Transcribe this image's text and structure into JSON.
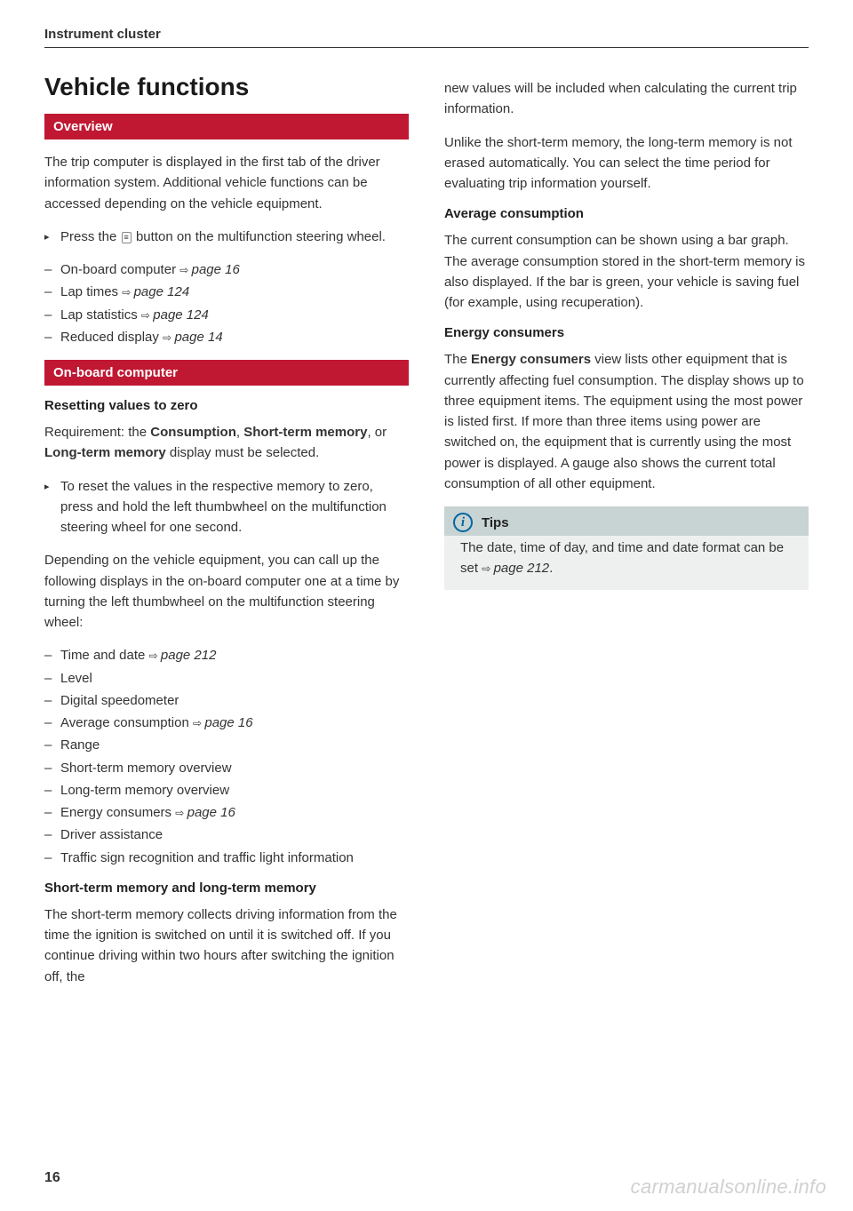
{
  "header": "Instrument cluster",
  "pageNumber": "16",
  "watermark": "carmanualsonline.info",
  "left": {
    "title": "Vehicle functions",
    "overviewBar": "Overview",
    "p1": "The trip computer is displayed in the first tab of the driver information system. Additional vehicle functions can be accessed depending on the vehicle equipment.",
    "press_pre": "Press the ",
    "press_post": " button on the multifunction steering wheel.",
    "list1": [
      {
        "pre": "On-board computer ",
        "ref": "page 16"
      },
      {
        "pre": "Lap times ",
        "ref": "page 124"
      },
      {
        "pre": "Lap statistics ",
        "ref": "page 124"
      },
      {
        "pre": "Reduced display ",
        "ref": "page 14"
      }
    ],
    "obcBar": "On-board computer",
    "sub1": "Resetting values to zero",
    "req_pre": "Requirement: the ",
    "req_b1": "Consumption",
    "req_mid1": ", ",
    "req_b2": "Short-term memory",
    "req_mid2": ", or ",
    "req_b3": "Long-term memory",
    "req_post": " display must be selected.",
    "reset": "To reset the values in the respective memory to zero, press and hold the left thumbwheel on the multifunction steering wheel for one second.",
    "p2": "Depending on the vehicle equipment, you can call up the following displays in the on-board computer one at a time by turning the left thumbwheel on the multifunction steering wheel:",
    "list2": [
      {
        "pre": "Time and date ",
        "ref": "page 212"
      },
      {
        "pre": "Level"
      },
      {
        "pre": "Digital speedometer"
      },
      {
        "pre": "Average consumption ",
        "ref": "page 16"
      },
      {
        "pre": "Range"
      },
      {
        "pre": "Short-term memory overview"
      },
      {
        "pre": "Long-term memory overview"
      },
      {
        "pre": "Energy consumers ",
        "ref": "page 16"
      },
      {
        "pre": "Driver assistance"
      },
      {
        "pre": "Traffic sign recognition and traffic light information"
      }
    ],
    "sub2": "Short-term memory and long-term memory",
    "p3": "The short-term memory collects driving information from the time the ignition is switched on until it is switched off. If you continue driving within two hours after switching the ignition off, the"
  },
  "right": {
    "p1": "new values will be included when calculating the current trip information.",
    "p2": "Unlike the short-term memory, the long-term memory is not erased automatically. You can select the time period for evaluating trip information yourself.",
    "sub1": "Average consumption",
    "p3": "The current consumption can be shown using a bar graph. The average consumption stored in the short-term memory is also displayed. If the bar is green, your vehicle is saving fuel (for example, using recuperation).",
    "sub2": "Energy consumers",
    "ec_pre": "The ",
    "ec_bold": "Energy consumers",
    "ec_post": " view lists other equipment that is currently affecting fuel consumption. The display shows up to three equipment items. The equipment using the most power is listed first. If more than three items using power are switched on, the equipment that is currently using the most power is displayed. A gauge also shows the current total consumption of all other equipment.",
    "tipTitle": "Tips",
    "tip_pre": "The date, time of day, and time and date format can be set ",
    "tip_ref": "page 212",
    "tip_post": "."
  }
}
